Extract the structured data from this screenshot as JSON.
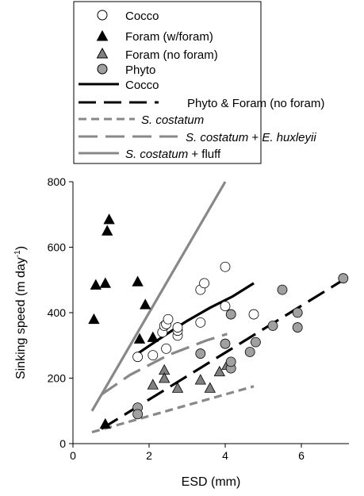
{
  "chart_data": {
    "type": "scatter",
    "xlabel": "ESD (mm)",
    "ylabel_main": "Sinking speed (m day",
    "ylabel_sup": "-1",
    "ylabel_end": ")",
    "xlim": [
      0,
      8
    ],
    "ylim": [
      0,
      800
    ],
    "xticks": [
      0,
      2,
      4,
      6
    ],
    "yticks": [
      0,
      200,
      400,
      600,
      800
    ],
    "grid": false,
    "legend_position": "top",
    "legend": {
      "cocco_pts": "Cocco",
      "foram_w": "Foram (w/foram)",
      "foram_no": "Foram (no foram)",
      "phyto_pts": "Phyto",
      "cocco_line": "Cocco",
      "phyto_foram_line": "Phyto & Foram (no foram)",
      "sc_line": "S. costatum",
      "sc_eh_a": "S. costatum",
      "sc_eh_b": " + ",
      "sc_eh_c": "E. huxleyii",
      "sc_fluff_a": "S. costatum",
      "sc_fluff_b": " + fluff"
    },
    "series": [
      {
        "name": "Cocco",
        "kind": "points",
        "marker": "circle-open",
        "color": "#ffffff",
        "points": [
          [
            1.7,
            265
          ],
          [
            2.1,
            270
          ],
          [
            2.35,
            340
          ],
          [
            2.4,
            360
          ],
          [
            2.45,
            365
          ],
          [
            2.5,
            380
          ],
          [
            2.45,
            290
          ],
          [
            2.75,
            330
          ],
          [
            2.75,
            345
          ],
          [
            2.75,
            355
          ],
          [
            3.35,
            470
          ],
          [
            3.45,
            490
          ],
          [
            3.35,
            370
          ],
          [
            4.0,
            540
          ],
          [
            4.0,
            420
          ],
          [
            4.75,
            395
          ]
        ]
      },
      {
        "name": "Foram (w/foram)",
        "kind": "points",
        "marker": "triangle",
        "color": "#000000",
        "points": [
          [
            0.55,
            380
          ],
          [
            0.6,
            485
          ],
          [
            0.85,
            490
          ],
          [
            0.9,
            650
          ],
          [
            0.95,
            685
          ],
          [
            1.7,
            495
          ],
          [
            1.9,
            425
          ],
          [
            1.75,
            320
          ],
          [
            2.1,
            325
          ],
          [
            0.85,
            60
          ]
        ]
      },
      {
        "name": "Foram (no foram)",
        "kind": "points",
        "marker": "triangle",
        "color": "#808080",
        "points": [
          [
            2.1,
            180
          ],
          [
            2.4,
            225
          ],
          [
            2.4,
            200
          ],
          [
            2.75,
            170
          ],
          [
            3.35,
            195
          ],
          [
            3.6,
            170
          ],
          [
            3.85,
            220
          ],
          [
            4.05,
            240
          ]
        ]
      },
      {
        "name": "Phyto",
        "kind": "points",
        "marker": "circle",
        "color": "#a0a0a0",
        "points": [
          [
            1.7,
            110
          ],
          [
            1.7,
            90
          ],
          [
            3.35,
            275
          ],
          [
            4.0,
            305
          ],
          [
            4.15,
            230
          ],
          [
            4.15,
            250
          ],
          [
            4.15,
            395
          ],
          [
            4.65,
            280
          ],
          [
            4.8,
            310
          ],
          [
            5.25,
            360
          ],
          [
            5.5,
            470
          ],
          [
            5.9,
            400
          ],
          [
            5.9,
            355
          ],
          [
            7.1,
            505
          ]
        ]
      },
      {
        "name": "Cocco",
        "kind": "line",
        "color": "#000000",
        "dash": "solid",
        "points": [
          [
            1.7,
            275
          ],
          [
            2.4,
            330
          ],
          [
            3.0,
            375
          ],
          [
            3.6,
            415
          ],
          [
            4.2,
            450
          ],
          [
            4.75,
            490
          ]
        ]
      },
      {
        "name": "Phyto & Foram (no foram)",
        "kind": "line",
        "color": "#000000",
        "dash": "long",
        "points": [
          [
            0.75,
            45
          ],
          [
            7.1,
            500
          ]
        ]
      },
      {
        "name": "S. costatum",
        "kind": "line",
        "color": "#888888",
        "dash": "short",
        "points": [
          [
            0.5,
            35
          ],
          [
            4.75,
            175
          ]
        ]
      },
      {
        "name": "S. costatum + E. huxleyii",
        "kind": "line",
        "color": "#888888",
        "dash": "long",
        "points": [
          [
            0.75,
            150
          ],
          [
            1.5,
            210
          ],
          [
            2.5,
            270
          ],
          [
            3.5,
            315
          ],
          [
            4.05,
            335
          ]
        ]
      },
      {
        "name": "S. costatum + fluff",
        "kind": "line",
        "color": "#888888",
        "dash": "solid",
        "points": [
          [
            0.5,
            100
          ],
          [
            4.0,
            800
          ]
        ]
      }
    ]
  }
}
